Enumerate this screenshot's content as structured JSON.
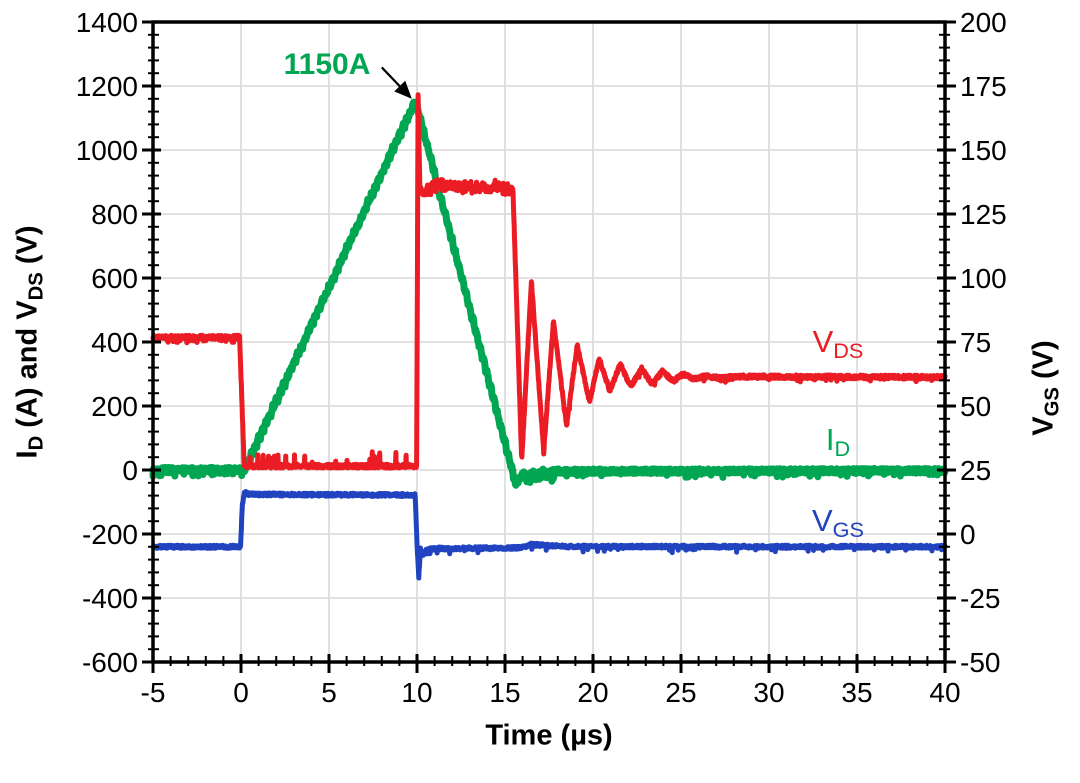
{
  "chart_data": {
    "type": "line",
    "title": "",
    "xlabel": "Time (µs)",
    "ylabel_left": "I_D (A) and V_DS (V)",
    "ylabel_right": "V_GS (V)",
    "xlim": [
      -5,
      40
    ],
    "ylim_left": [
      -600,
      1400
    ],
    "ylim_right": [
      -50,
      200
    ],
    "x_ticks": [
      -5,
      0,
      5,
      10,
      15,
      20,
      25,
      30,
      35,
      40
    ],
    "x_minor_step": 1,
    "left_ticks": [
      1400,
      1200,
      1000,
      800,
      600,
      400,
      200,
      0,
      -200,
      -400,
      -600
    ],
    "left_minor_step": 40,
    "right_ticks": [
      200,
      175,
      150,
      125,
      100,
      75,
      50,
      25,
      0,
      -25,
      -50
    ],
    "right_minor_step": 5,
    "grid": true,
    "legend_position": "right-inside",
    "colors": {
      "vds": "#EC1C24",
      "id": "#00A651",
      "vgs": "#2143C0",
      "grid": "#D9D9D9",
      "axis": "#000000",
      "background": "#FFFFFF"
    },
    "annotation": {
      "text": "1150A",
      "color": "#00A651",
      "arrow_from": {
        "t": 8.0,
        "v": 1258
      },
      "arrow_to": {
        "t": 9.62,
        "v": 1165
      }
    },
    "series": [
      {
        "name": "I_D",
        "axis": "left",
        "color": "#00A651",
        "stroke_width": 7,
        "noise_amp": 7,
        "saw": {
          "range": [
            0.3,
            15.5
          ],
          "amp": 8,
          "period": 0.2
        },
        "spikes": [
          {
            "range": [
              -5,
              0.1
            ],
            "amp": 14,
            "dir": -1,
            "p": 0.25
          },
          {
            "range": [
              16.1,
              17.8
            ],
            "amp": 22,
            "dir": -1,
            "p": 0.3
          },
          {
            "range": [
              18,
              40
            ],
            "amp": 16,
            "dir": -1,
            "p": 0.04
          }
        ],
        "breakpoints": [
          [
            -5,
            1
          ],
          [
            0.2,
            1
          ],
          [
            9.88,
            1150
          ],
          [
            10.02,
            1132
          ],
          [
            15.62,
            -45
          ],
          [
            15.92,
            -22
          ],
          [
            16.1,
            -8
          ],
          [
            16.35,
            -18
          ],
          [
            16.6,
            -4
          ],
          [
            16.85,
            -14
          ],
          [
            17.15,
            -4
          ],
          [
            17.45,
            -10
          ],
          [
            17.85,
            -3
          ],
          [
            18.6,
            -4
          ],
          [
            40,
            -2
          ]
        ]
      },
      {
        "name": "V_DS",
        "axis": "left",
        "color": "#EC1C24",
        "stroke_width": 5,
        "noise_amp": 6,
        "spikes": [
          {
            "range": [
              -5,
              -0.1
            ],
            "amp": 16,
            "dir": -1,
            "p": 0.12
          },
          {
            "range": [
              0.3,
              9.9
            ],
            "amp": 45,
            "dir": 1,
            "p": 0.035
          },
          {
            "range": [
              10.4,
              15.3
            ],
            "amp": 22,
            "dir": 1,
            "p": 0.18
          },
          {
            "range": [
              10.4,
              15.3
            ],
            "amp": 14,
            "dir": -1,
            "p": 0.18
          },
          {
            "range": [
              17,
              40
            ],
            "amp": 12,
            "dir": -1,
            "p": 0.05
          }
        ],
        "breakpoints": [
          [
            -5,
            415
          ],
          [
            -0.08,
            415
          ],
          [
            0.18,
            12
          ],
          [
            9.98,
            12
          ],
          [
            10.06,
            1175
          ],
          [
            10.16,
            885
          ],
          [
            10.35,
            862
          ],
          [
            11,
            883
          ],
          [
            15.45,
            880
          ],
          [
            15.95,
            30
          ],
          [
            16.5,
            590
          ],
          [
            17.2,
            58
          ],
          [
            17.75,
            465
          ],
          [
            18.5,
            140
          ],
          [
            19.1,
            390
          ],
          [
            19.8,
            212
          ],
          [
            20.35,
            350
          ],
          [
            20.95,
            247
          ],
          [
            21.55,
            330
          ],
          [
            22.15,
            260
          ],
          [
            22.75,
            318
          ],
          [
            23.35,
            268
          ],
          [
            23.95,
            308
          ],
          [
            24.55,
            278
          ],
          [
            25.15,
            300
          ],
          [
            25.75,
            284
          ],
          [
            26.4,
            295
          ],
          [
            27.2,
            287
          ],
          [
            28.2,
            292
          ],
          [
            40,
            290
          ]
        ]
      },
      {
        "name": "V_GS",
        "axis": "right",
        "color": "#2143C0",
        "stroke_width": 5,
        "noise_amp": 0.6,
        "spikes": [
          {
            "range": [
              10.5,
              40
            ],
            "amp": 2,
            "dir": -1,
            "p": 0.03
          }
        ],
        "breakpoints": [
          [
            -5,
            -5
          ],
          [
            -0.02,
            -5
          ],
          [
            0.07,
            11
          ],
          [
            0.2,
            16.3
          ],
          [
            0.42,
            15.5
          ],
          [
            3,
            15.4
          ],
          [
            9.9,
            15.2
          ],
          [
            10.02,
            -7
          ],
          [
            10.1,
            -16.8
          ],
          [
            10.2,
            -5.6
          ],
          [
            10.34,
            -8.2
          ],
          [
            10.55,
            -6
          ],
          [
            11.2,
            -5.7
          ],
          [
            15.9,
            -5.4
          ],
          [
            16.5,
            -4.1
          ],
          [
            17.3,
            -4.5
          ],
          [
            18.6,
            -4.9
          ],
          [
            40,
            -5
          ]
        ]
      }
    ]
  },
  "labels": {
    "left_title": {
      "p1": "I",
      "s1": "D",
      "p2": " (A) and V",
      "s2": "DS",
      "p3": " (V)"
    },
    "right_title": {
      "p1": "V",
      "s1": "GS",
      "p2": " (V)"
    },
    "x_title": "Time (µs)",
    "annotation": "1150A",
    "legend": [
      {
        "pre": "V",
        "sub": "DS"
      },
      {
        "pre": "I",
        "sub": "D"
      },
      {
        "pre": "V",
        "sub": "GS"
      }
    ]
  }
}
